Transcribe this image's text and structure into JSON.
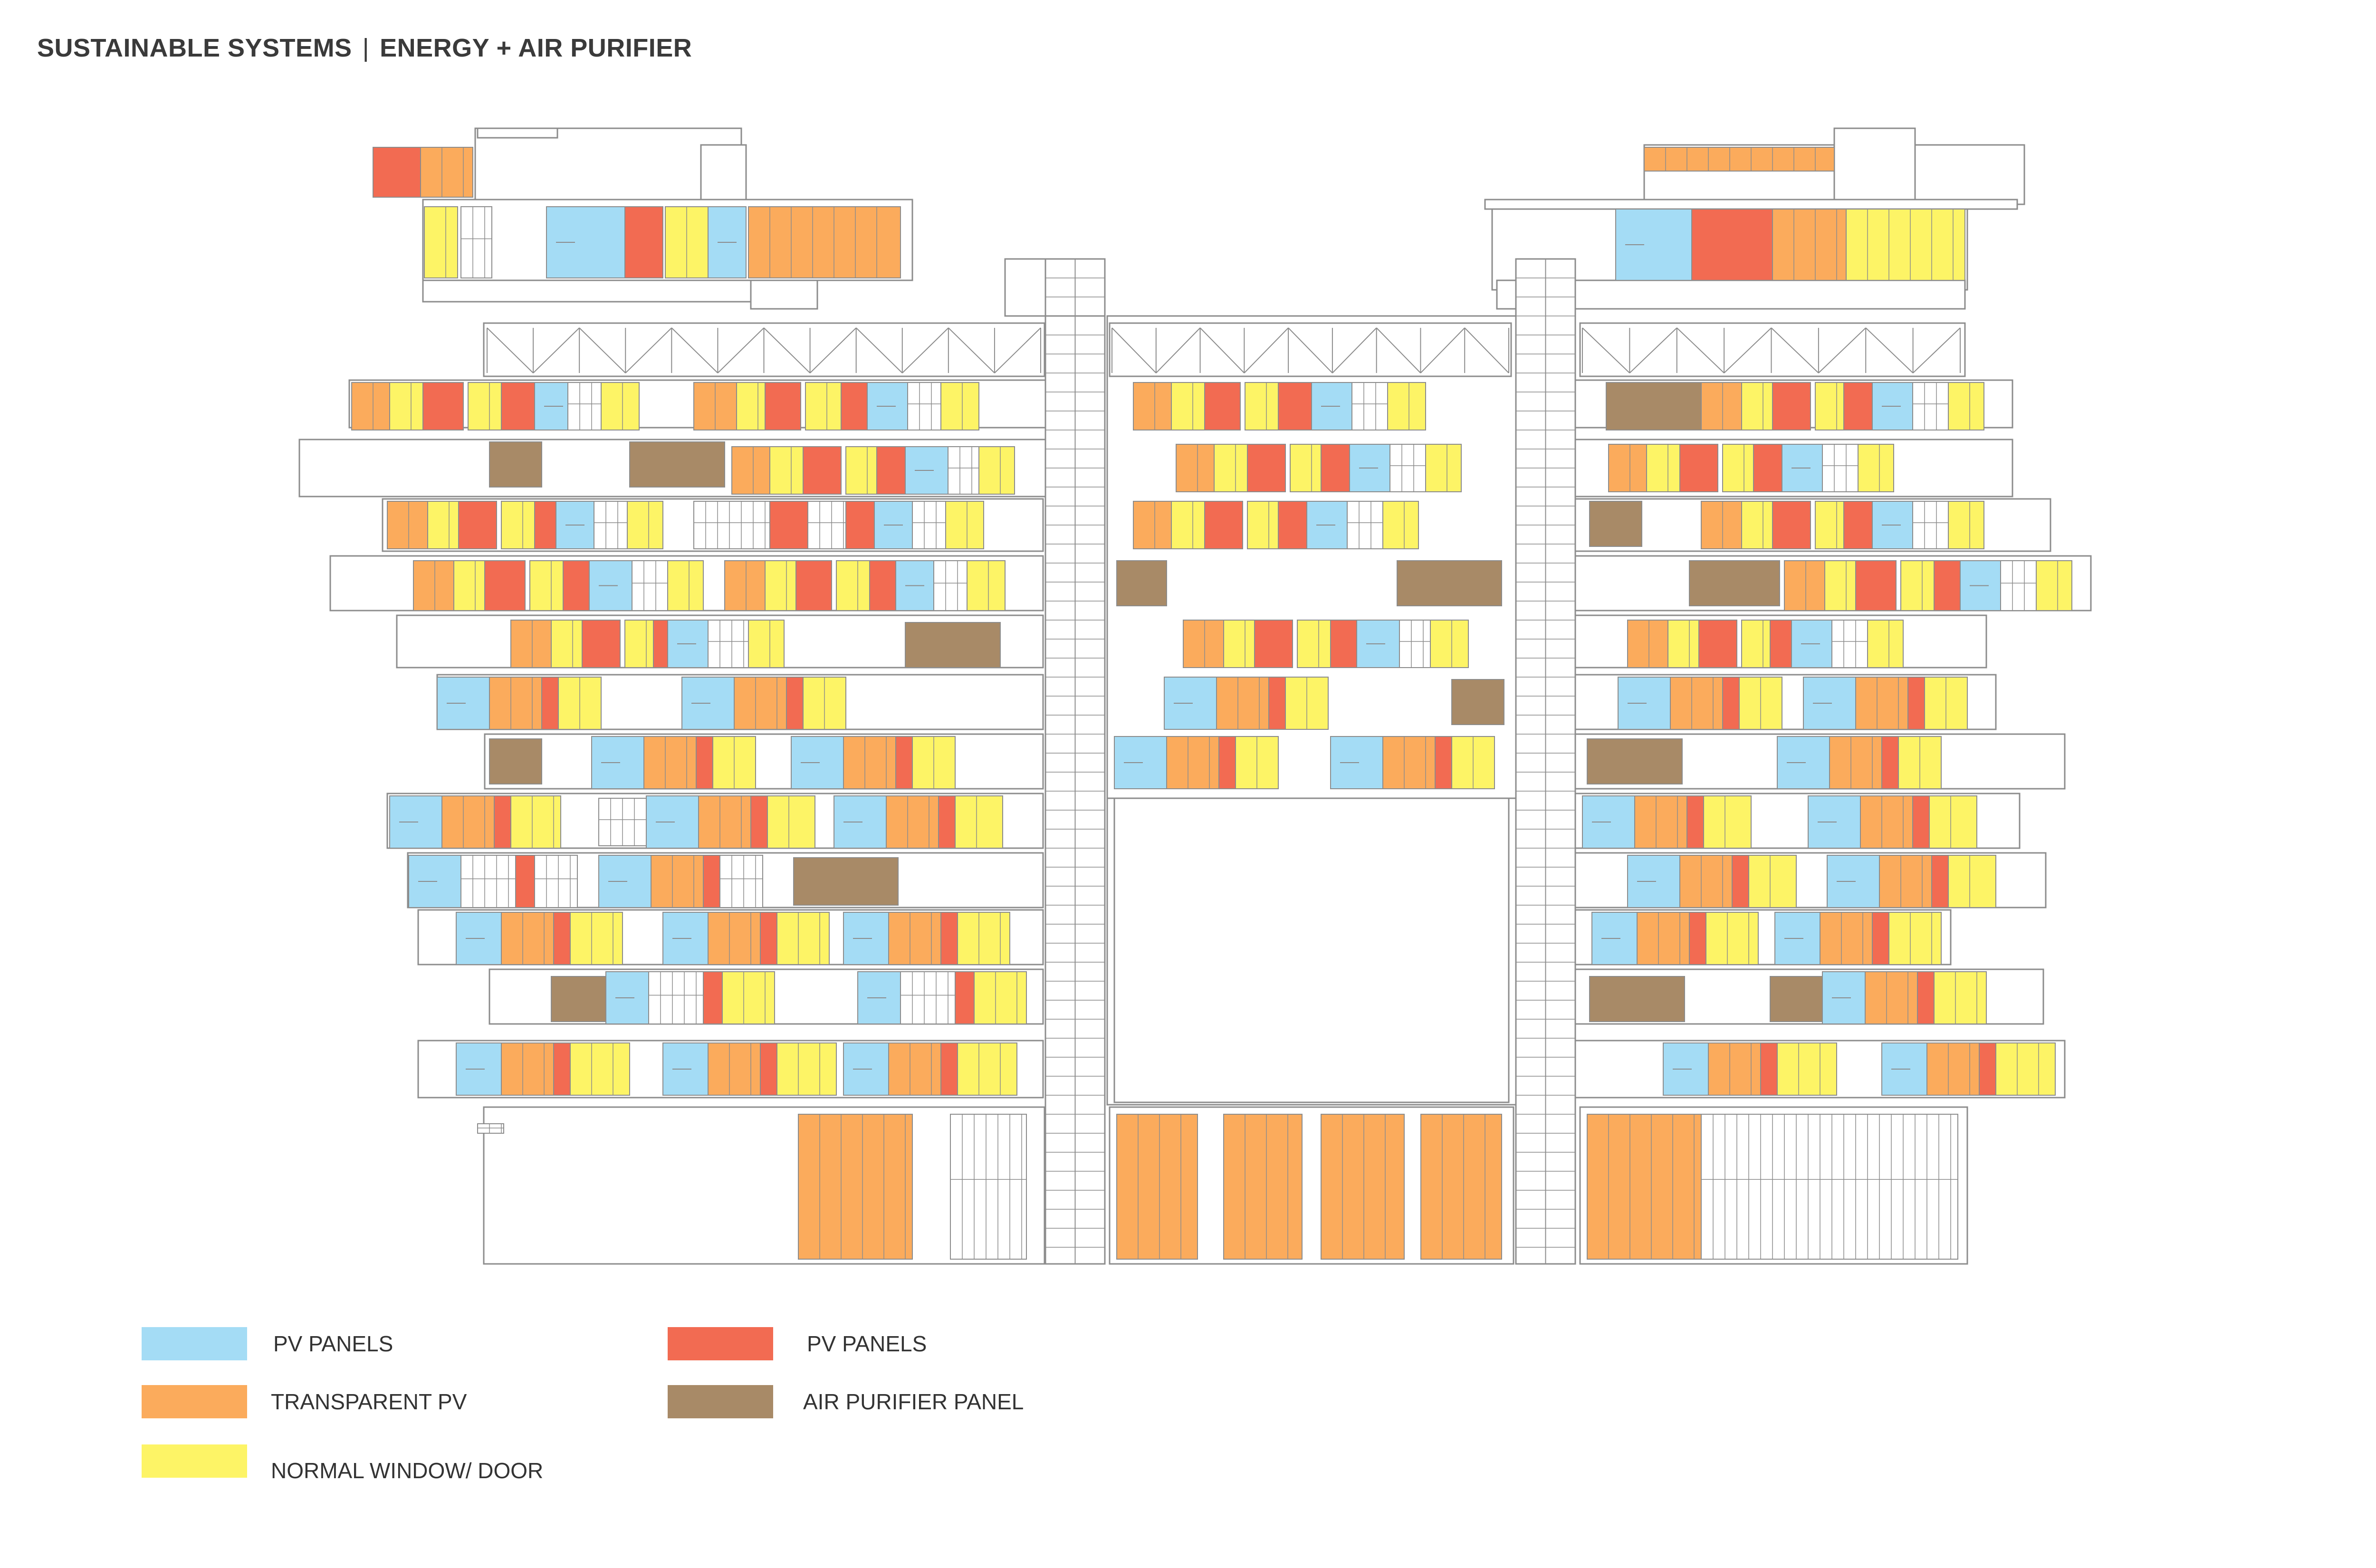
{
  "title": {
    "main": "SUSTAINABLE SYSTEMS",
    "separator": "|",
    "sub": "ENERGY + AIR PURIFIER"
  },
  "colors": {
    "pv_blue": "#a4dcf5",
    "pv_red": "#f26b52",
    "transparent_pv": "#fbab5c",
    "normal_window": "#fdf466",
    "air_purifier": "#a88a67",
    "line": "#8c8c8c"
  },
  "legend": [
    {
      "label": "PV PANELS",
      "color_key": "pv_blue"
    },
    {
      "label": "TRANSPARENT PV",
      "color_key": "transparent_pv"
    },
    {
      "label": "NORMAL WINDOW/ DOOR",
      "color_key": "normal_window"
    },
    {
      "label": "PV PANELS",
      "color_key": "pv_red"
    },
    {
      "label": "AIR PURIFIER PANEL",
      "color_key": "air_purifier"
    }
  ]
}
